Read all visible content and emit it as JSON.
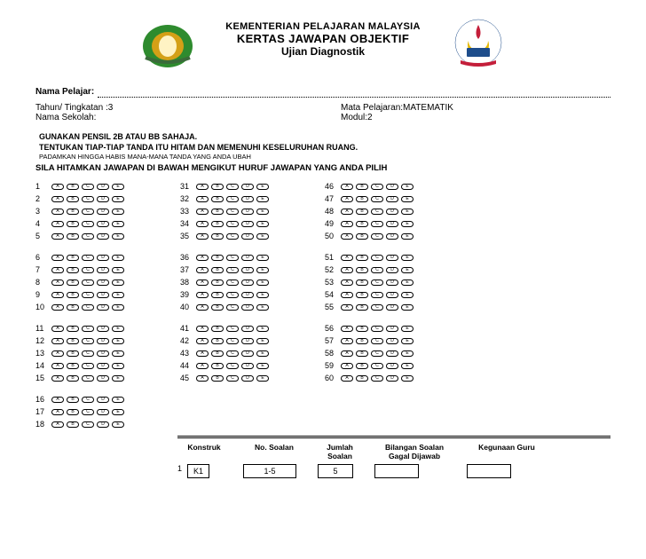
{
  "header": {
    "line1": "KEMENTERIAN PELAJARAN MALAYSIA",
    "line2": "KERTAS JAWAPAN OBJEKTIF",
    "line3": "Ujian Diagnostik"
  },
  "logo_left": {
    "colors": {
      "leaf": "#2e8b2e",
      "center": "#d4a017",
      "inner": "#fff3c4"
    }
  },
  "logo_right": {
    "colors": {
      "flame": "#c41e3a",
      "crescent": "#e6b800",
      "book": "#1e4d8b",
      "ribbon": "#c41e3a"
    },
    "text": "KEMENTERIAN PELAJARAN MALAYSIA"
  },
  "info": {
    "nama_pelajar_label": "Nama Pelajar:",
    "nama_pelajar_value": "",
    "tahun_label": "Tahun/ Tingkatan :",
    "tahun_value": "3",
    "mata_label": "Mata Pelajaran:",
    "mata_value": "MATEMATIK",
    "sekolah_label": "Nama Sekolah:",
    "sekolah_value": "",
    "modul_label": "Modul:",
    "modul_value": "2"
  },
  "instructions": {
    "l1": "GUNAKAN PENSIL 2B ATAU BB SAHAJA.",
    "l2": "TENTUKAN TIAP-TIAP TANDA ITU HITAM DAN MEMENUHI KESELURUHAN RUANG.",
    "l3": "PADAMKAN HINGGA HABIS MANA-MANA TANDA YANG ANDA UBAH",
    "main": "SILA HITAMKAN JAWAPAN DI BAWAH MENGIKUT HURUF JAWAPAN YANG ANDA PILIH"
  },
  "bubbles": {
    "options": [
      "A",
      "B",
      "C",
      "D",
      "E"
    ],
    "columns": [
      {
        "start": 1,
        "groups": [
          [
            1,
            2,
            3,
            4,
            5
          ],
          [
            6,
            7,
            8,
            9,
            10
          ],
          [
            11,
            12,
            13,
            14,
            15
          ],
          [
            16,
            17,
            18
          ]
        ]
      },
      {
        "start": 31,
        "groups": [
          [
            31,
            32,
            33,
            34,
            35
          ],
          [
            36,
            37,
            38,
            39,
            40
          ],
          [
            41,
            42,
            43,
            44,
            45
          ]
        ]
      },
      {
        "start": 46,
        "groups": [
          [
            46,
            47,
            48,
            49,
            50
          ],
          [
            51,
            52,
            53,
            54,
            55
          ],
          [
            56,
            57,
            58,
            59,
            60
          ]
        ]
      }
    ]
  },
  "footer": {
    "headers": {
      "konstruk": "Konstruk",
      "no_soalan": "No. Soalan",
      "jumlah": "Jumlah Soalan",
      "gagal": "Bilangan Soalan Gagal Dijawab",
      "kegunaan": "Kegunaan Guru"
    },
    "rows": [
      {
        "idx": "1",
        "k": "K1",
        "ns": "1-5",
        "js": "5",
        "gd": "",
        "kg": ""
      }
    ]
  }
}
